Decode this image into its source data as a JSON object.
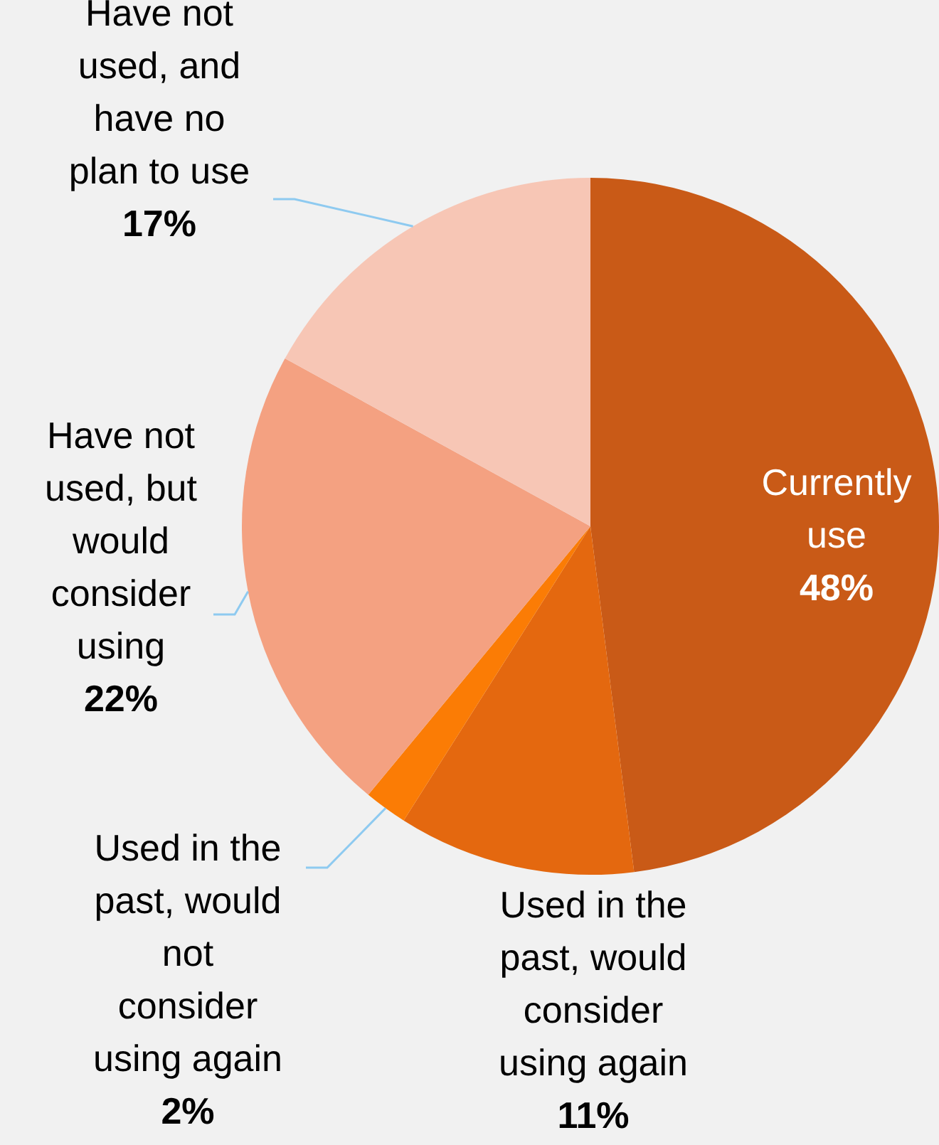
{
  "chart_data": {
    "type": "pie",
    "categories": [
      "Currently use",
      "Used in the past, would consider using again",
      "Used in the past, would not consider using again",
      "Have not used, but would consider using",
      "Have not used, and have no plan to use"
    ],
    "values": [
      48,
      11,
      2,
      22,
      17
    ],
    "colors": [
      "#c95a17",
      "#e4680f",
      "#fb7c05",
      "#f4a181",
      "#f7c6b5"
    ],
    "value_labels": [
      "48%",
      "11%",
      "2%",
      "22%",
      "17%"
    ]
  }
}
